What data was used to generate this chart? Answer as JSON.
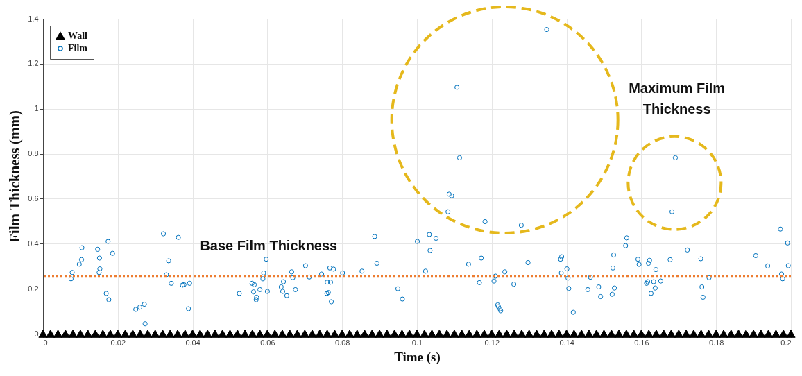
{
  "chart_data": {
    "type": "scatter",
    "xlabel": "Time (s)",
    "ylabel": "Film Thickness (mm)",
    "xlim": [
      0,
      0.2
    ],
    "xticks": [
      0,
      0.02,
      0.04,
      0.06,
      0.08,
      0.1,
      0.12,
      0.14,
      0.16,
      0.18,
      0.2
    ],
    "ylim": [
      0,
      1.4
    ],
    "yticks": [
      0,
      0.2,
      0.4,
      0.6,
      0.8,
      1,
      1.2,
      1.4
    ],
    "grid": true,
    "legend": "top left",
    "series": [
      {
        "name": "Wall",
        "color": "#000000",
        "marker": "triangle",
        "x": [
          0,
          0.002,
          0.004,
          0.006,
          0.008,
          0.01,
          0.012,
          0.014,
          0.016,
          0.018,
          0.02,
          0.022,
          0.024,
          0.026,
          0.028,
          0.03,
          0.032,
          0.034,
          0.036,
          0.038,
          0.04,
          0.042,
          0.044,
          0.046,
          0.048,
          0.05,
          0.052,
          0.054,
          0.056,
          0.058,
          0.06,
          0.062,
          0.064,
          0.066,
          0.068,
          0.07,
          0.072,
          0.074,
          0.076,
          0.078,
          0.08,
          0.082,
          0.084,
          0.086,
          0.088,
          0.09,
          0.092,
          0.094,
          0.096,
          0.098,
          0.1,
          0.102,
          0.104,
          0.106,
          0.108,
          0.11,
          0.112,
          0.114,
          0.116,
          0.118,
          0.12,
          0.122,
          0.124,
          0.126,
          0.128,
          0.13,
          0.132,
          0.134,
          0.136,
          0.138,
          0.14,
          0.142,
          0.144,
          0.146,
          0.148,
          0.15,
          0.152,
          0.154,
          0.156,
          0.158,
          0.16,
          0.162,
          0.164,
          0.166,
          0.168,
          0.17,
          0.172,
          0.174,
          0.176,
          0.178,
          0.18,
          0.182,
          0.184,
          0.186,
          0.188,
          0.19,
          0.192,
          0.194,
          0.196,
          0.198,
          0.2
        ],
        "values": [
          0,
          0,
          0,
          0,
          0,
          0,
          0,
          0,
          0,
          0,
          0,
          0,
          0,
          0,
          0,
          0,
          0,
          0,
          0,
          0,
          0,
          0,
          0,
          0,
          0,
          0,
          0,
          0,
          0,
          0,
          0,
          0,
          0,
          0,
          0,
          0,
          0,
          0,
          0,
          0,
          0,
          0,
          0,
          0,
          0,
          0,
          0,
          0,
          0,
          0,
          0,
          0,
          0,
          0,
          0,
          0,
          0,
          0,
          0,
          0,
          0,
          0,
          0,
          0,
          0,
          0,
          0,
          0,
          0,
          0,
          0,
          0,
          0,
          0,
          0,
          0,
          0,
          0,
          0,
          0,
          0,
          0,
          0,
          0,
          0,
          0,
          0,
          0,
          0,
          0,
          0,
          0,
          0,
          0,
          0,
          0,
          0,
          0,
          0,
          0,
          0
        ]
      },
      {
        "name": "Film",
        "color": "#0072bd",
        "marker": "circle",
        "x": [
          0.0075,
          0.0078,
          0.0097,
          0.0103,
          0.0104,
          0.0146,
          0.0151,
          0.0152,
          0.015,
          0.0174,
          0.0186,
          0.0169,
          0.0176,
          0.0248,
          0.0259,
          0.0271,
          0.0273,
          0.0322,
          0.033,
          0.0336,
          0.0343,
          0.0362,
          0.0373,
          0.0377,
          0.0392,
          0.0389,
          0.0525,
          0.0559,
          0.0565,
          0.0563,
          0.0571,
          0.057,
          0.058,
          0.059,
          0.0588,
          0.0597,
          0.06,
          0.0665,
          0.0668,
          0.0702,
          0.0712,
          0.0637,
          0.0643,
          0.0641,
          0.0652,
          0.0675,
          0.0745,
          0.0767,
          0.0777,
          0.076,
          0.0769,
          0.0759,
          0.0763,
          0.0771,
          0.0801,
          0.0853,
          0.0887,
          0.0893,
          0.0949,
          0.0961,
          0.1001,
          0.1023,
          0.1033,
          0.1035,
          0.1051,
          0.1083,
          0.1086,
          0.1093,
          0.1107,
          0.1114,
          0.1138,
          0.1172,
          0.1182,
          0.1167,
          0.1206,
          0.121,
          0.1216,
          0.1218,
          0.1222,
          0.1224,
          0.1235,
          0.1259,
          0.1279,
          0.1297,
          0.1347,
          0.1384,
          0.1387,
          0.1386,
          0.1401,
          0.1404,
          0.1406,
          0.1418,
          0.1457,
          0.1464,
          0.1486,
          0.1491,
          0.1522,
          0.1528,
          0.1524,
          0.1526,
          0.1558,
          0.1561,
          0.1591,
          0.1594,
          0.1614,
          0.1617,
          0.1619,
          0.1622,
          0.1633,
          0.1637,
          0.1626,
          0.1639,
          0.1652,
          0.1677,
          0.1682,
          0.1691,
          0.1723,
          0.1759,
          0.1762,
          0.1765,
          0.1781,
          0.1906,
          0.1938,
          0.1972,
          0.1975,
          0.1978,
          0.1991,
          0.1993
        ],
        "values": [
          0.244,
          0.272,
          0.309,
          0.329,
          0.382,
          0.375,
          0.336,
          0.288,
          0.272,
          0.41,
          0.357,
          0.179,
          0.151,
          0.108,
          0.118,
          0.131,
          0.044,
          0.444,
          0.262,
          0.324,
          0.224,
          0.428,
          0.216,
          0.218,
          0.224,
          0.111,
          0.179,
          0.224,
          0.218,
          0.186,
          0.162,
          0.151,
          0.196,
          0.27,
          0.244,
          0.331,
          0.188,
          0.275,
          0.249,
          0.302,
          0.252,
          0.208,
          0.231,
          0.188,
          0.169,
          0.196,
          0.265,
          0.292,
          0.287,
          0.229,
          0.229,
          0.179,
          0.183,
          0.142,
          0.27,
          0.278,
          0.432,
          0.313,
          0.2,
          0.154,
          0.41,
          0.278,
          0.441,
          0.37,
          0.424,
          0.542,
          0.62,
          0.613,
          1.095,
          0.782,
          0.309,
          0.336,
          0.498,
          0.227,
          0.234,
          0.256,
          0.128,
          0.12,
          0.11,
          0.102,
          0.275,
          0.22,
          0.482,
          0.316,
          1.352,
          0.331,
          0.342,
          0.27,
          0.288,
          0.247,
          0.201,
          0.095,
          0.196,
          0.251,
          0.208,
          0.165,
          0.175,
          0.203,
          0.292,
          0.35,
          0.391,
          0.426,
          0.331,
          0.308,
          0.224,
          0.231,
          0.313,
          0.326,
          0.231,
          0.203,
          0.179,
          0.285,
          0.234,
          0.329,
          0.542,
          0.782,
          0.372,
          0.333,
          0.208,
          0.162,
          0.249,
          0.347,
          0.301,
          0.465,
          0.265,
          0.244,
          0.403,
          0.302
        ]
      }
    ],
    "ref_lines": [
      {
        "axis": "y",
        "value": 0.255,
        "label": "Base Film Thickness",
        "color": "#ed7d31",
        "line_style": "dotted"
      }
    ],
    "annotations": [
      "Maximum Film Thickness"
    ]
  }
}
